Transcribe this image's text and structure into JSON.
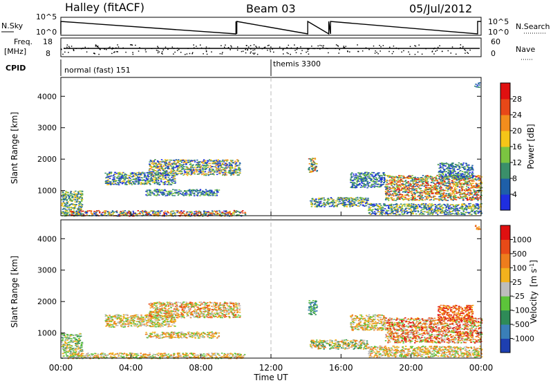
{
  "header": {
    "station": "Halley (fitACF)",
    "beam": "Beam 03",
    "date": "05/Jul/2012"
  },
  "chart_data": [
    {
      "type": "line",
      "panel": "nsky-nsearch",
      "left_label": "N.Sky",
      "right_label": "N.Search",
      "left_ticks": [
        "10^5",
        "10^0"
      ],
      "right_ticks": [
        "10^5",
        "10^0"
      ],
      "x_hours": [
        0,
        10,
        10.05,
        14.1,
        15.3,
        15.4,
        23.8
      ],
      "series": [
        {
          "values": [
            5,
            0,
            5,
            0,
            0,
            5,
            0
          ]
        }
      ]
    },
    {
      "type": "scatter",
      "panel": "freq-nave",
      "left_label_top": "Freq.",
      "left_label_bottom": "[MHz]",
      "right_label": "Nave",
      "left_ticks": [
        "18",
        "8"
      ],
      "right_ticks": [
        "60",
        "0"
      ],
      "freq_mhz": 11.3,
      "nave_range": [
        0,
        60
      ]
    },
    {
      "type": "table",
      "panel": "cpid",
      "label": "CPID",
      "programs": [
        {
          "name": "normal (fast) 151",
          "start_hour": 0
        },
        {
          "name": "themis 3300",
          "start_hour": 12
        }
      ]
    },
    {
      "type": "heatmap",
      "panel": "power",
      "ylabel": "Slant Range [km]",
      "colorbar_label": "Power [dB]",
      "colorbar_ticks": [
        "4",
        "8",
        "12",
        "16",
        "20",
        "24",
        "28"
      ],
      "colorbar_colors": [
        "#1f2ee0",
        "#1e5fa8",
        "#3a8f6a",
        "#7bc441",
        "#f5c518",
        "#f28d1d",
        "#e84818",
        "#e01010"
      ],
      "y_ticks": [
        "1000",
        "2000",
        "3000",
        "4000"
      ],
      "ylim": [
        200,
        4600
      ],
      "xlim_hours": [
        0,
        24
      ],
      "patches": [
        {
          "x": [
            0,
            1.2
          ],
          "y": [
            200,
            1000
          ],
          "vmin": 1,
          "vmax": 4
        },
        {
          "x": [
            0.5,
            10.5
          ],
          "y": [
            200,
            380
          ],
          "vmin": 0,
          "vmax": 7
        },
        {
          "x": [
            2.5,
            6.5
          ],
          "y": [
            1200,
            1600
          ],
          "vmin": 0,
          "vmax": 4
        },
        {
          "x": [
            5.0,
            10.2
          ],
          "y": [
            1500,
            2000
          ],
          "vmin": 0,
          "vmax": 5
        },
        {
          "x": [
            4.8,
            9.0
          ],
          "y": [
            850,
            1050
          ],
          "vmin": 0,
          "vmax": 3
        },
        {
          "x": [
            14.1,
            14.6
          ],
          "y": [
            1600,
            2050
          ],
          "vmin": 1,
          "vmax": 6
        },
        {
          "x": [
            14.2,
            17.5
          ],
          "y": [
            500,
            800
          ],
          "vmin": 0,
          "vmax": 4
        },
        {
          "x": [
            16.5,
            18.5
          ],
          "y": [
            1100,
            1600
          ],
          "vmin": 0,
          "vmax": 3
        },
        {
          "x": [
            18.5,
            24.0
          ],
          "y": [
            700,
            1500
          ],
          "vmin": 1,
          "vmax": 7
        },
        {
          "x": [
            21.5,
            23.5
          ],
          "y": [
            1400,
            1900
          ],
          "vmin": 0,
          "vmax": 3
        },
        {
          "x": [
            17.5,
            24.0
          ],
          "y": [
            250,
            600
          ],
          "vmin": 0,
          "vmax": 4
        },
        {
          "x": [
            23.6,
            23.9
          ],
          "y": [
            4300,
            4450
          ],
          "vmin": 0,
          "vmax": 2
        }
      ]
    },
    {
      "type": "heatmap",
      "panel": "velocity",
      "ylabel": "Slant Range [km]",
      "colorbar_label_main": "Velocity",
      "colorbar_label_units": "[m s",
      "colorbar_label_sup": "-1",
      "colorbar_label_close": "]",
      "colorbar_ticks": [
        "1000",
        "500",
        "100",
        "25",
        "-25",
        "-100",
        "-500",
        "-1000"
      ],
      "colorbar_colors": [
        "#1e3fb0",
        "#3a7fb8",
        "#2e8b57",
        "#5cc43a",
        "#bdbdbd",
        "#f2b21d",
        "#ee7d1d",
        "#e84a18",
        "#e01010"
      ],
      "y_ticks": [
        "1000",
        "2000",
        "3000",
        "4000"
      ],
      "ylim": [
        200,
        4600
      ],
      "xlim_hours": [
        0,
        24
      ],
      "patches": [
        {
          "x": [
            0,
            1.2
          ],
          "y": [
            200,
            1000
          ],
          "vmin": 2,
          "vmax": 5
        },
        {
          "x": [
            0.5,
            10.5
          ],
          "y": [
            200,
            380
          ],
          "vmin": 3,
          "vmax": 6
        },
        {
          "x": [
            2.5,
            6.5
          ],
          "y": [
            1200,
            1600
          ],
          "vmin": 3,
          "vmax": 6
        },
        {
          "x": [
            5.0,
            10.2
          ],
          "y": [
            1500,
            2000
          ],
          "vmin": 3,
          "vmax": 7
        },
        {
          "x": [
            4.8,
            9.0
          ],
          "y": [
            850,
            1050
          ],
          "vmin": 3,
          "vmax": 6
        },
        {
          "x": [
            14.1,
            14.6
          ],
          "y": [
            1600,
            2050
          ],
          "vmin": 1,
          "vmax": 3
        },
        {
          "x": [
            14.2,
            17.5
          ],
          "y": [
            500,
            800
          ],
          "vmin": 2,
          "vmax": 6
        },
        {
          "x": [
            16.5,
            18.5
          ],
          "y": [
            1100,
            1600
          ],
          "vmin": 3,
          "vmax": 6
        },
        {
          "x": [
            18.5,
            24.0
          ],
          "y": [
            700,
            1500
          ],
          "vmin": 3,
          "vmax": 8
        },
        {
          "x": [
            21.5,
            23.5
          ],
          "y": [
            1400,
            1900
          ],
          "vmin": 5,
          "vmax": 8
        },
        {
          "x": [
            17.5,
            24.0
          ],
          "y": [
            250,
            600
          ],
          "vmin": 3,
          "vmax": 6
        },
        {
          "x": [
            23.6,
            23.9
          ],
          "y": [
            4300,
            4450
          ],
          "vmin": 5,
          "vmax": 7
        }
      ]
    }
  ],
  "x_axis": {
    "ticks": [
      "00:00",
      "04:00",
      "08:00",
      "12:00",
      "16:00",
      "20:00",
      "00:00"
    ],
    "label": "Time UT",
    "marker_hour": 12
  }
}
